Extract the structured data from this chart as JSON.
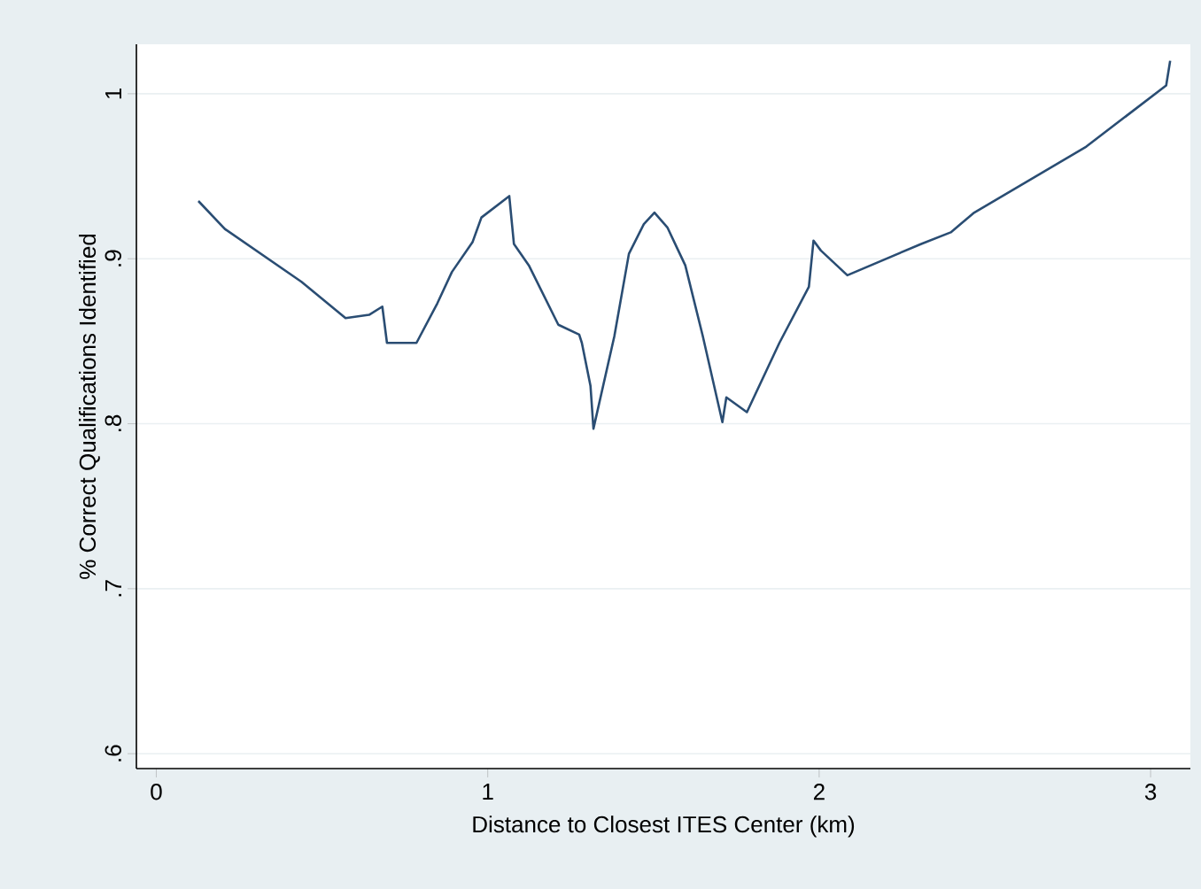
{
  "chart_data": {
    "type": "line",
    "xlabel": "Distance to Closest ITES Center (km)",
    "ylabel": "% Correct Qualifications Identified",
    "xlim": [
      -0.06,
      3.12
    ],
    "ylim": [
      0.591,
      1.03
    ],
    "xticks": [
      0,
      1,
      2,
      3
    ],
    "yticks": [
      {
        "value": 0.6,
        "label": ".6"
      },
      {
        "value": 0.7,
        "label": ".7"
      },
      {
        "value": 0.8,
        "label": ".8"
      },
      {
        "value": 0.9,
        "label": ".9"
      },
      {
        "value": 1,
        "label": "1"
      }
    ],
    "grid": "y",
    "line_style": "solid",
    "x": [
      0.127,
      0.207,
      0.438,
      0.571,
      0.642,
      0.682,
      0.696,
      0.785,
      0.848,
      0.892,
      0.954,
      0.981,
      1.065,
      1.079,
      1.124,
      1.213,
      1.276,
      1.284,
      1.31,
      1.319,
      1.382,
      1.426,
      1.471,
      1.503,
      1.542,
      1.596,
      1.649,
      1.708,
      1.72,
      1.782,
      1.88,
      1.969,
      1.983,
      2.005,
      2.085,
      2.308,
      2.397,
      2.468,
      2.806,
      3.047,
      3.059
    ],
    "series": [
      {
        "color": "#2a4d73",
        "values": [
          0.935,
          0.918,
          0.886,
          0.864,
          0.866,
          0.871,
          0.849,
          0.849,
          0.873,
          0.892,
          0.91,
          0.925,
          0.938,
          0.909,
          0.896,
          0.86,
          0.854,
          0.849,
          0.823,
          0.797,
          0.853,
          0.903,
          0.921,
          0.928,
          0.919,
          0.896,
          0.853,
          0.801,
          0.816,
          0.807,
          0.849,
          0.883,
          0.911,
          0.905,
          0.89,
          0.909,
          0.916,
          0.928,
          0.968,
          1.005,
          1.02
        ]
      }
    ]
  }
}
